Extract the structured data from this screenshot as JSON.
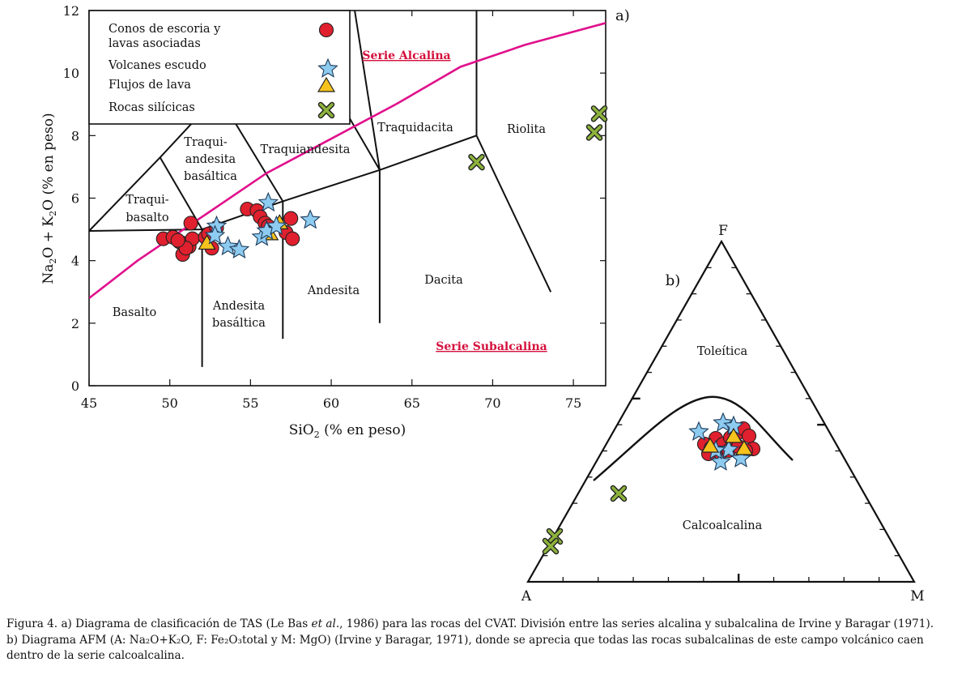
{
  "colors": {
    "cono": "#e0202e",
    "escudo": "#8ecbf0",
    "flujo": "#f6c21c",
    "silicica": "#8db33c",
    "divider": "#e0108c",
    "series_label": "#d4103c"
  },
  "chart_data": [
    {
      "type": "scatter",
      "panel_label": "a)",
      "title": "Diagrama de clasificación TAS",
      "xlabel": "SiO2 (% en peso)",
      "ylabel": "Na2O + K2O (% en peso)",
      "xlim": [
        45,
        77
      ],
      "ylim": [
        0,
        12
      ],
      "x_ticks": [
        45,
        50,
        55,
        60,
        65,
        70,
        75
      ],
      "y_ticks": [
        0,
        2,
        4,
        6,
        8,
        10,
        12
      ],
      "legend": [
        {
          "key": "cono",
          "label": "Conos de escoria  y lavas asociadas",
          "marker": "circle"
        },
        {
          "key": "escudo",
          "label": "Volcanes escudo",
          "marker": "star"
        },
        {
          "key": "flujo",
          "label": "Flujos de lava",
          "marker": "triangle"
        },
        {
          "key": "silicica",
          "label": "Rocas silícicas",
          "marker": "x"
        }
      ],
      "fields": [
        "Traqui-",
        "basalto",
        "Traqui-",
        "andesita",
        "basáltica",
        "Traquiandesita",
        "Traquidacita",
        "Riolita",
        "Basalto",
        "Andesita",
        "basáltica",
        "Andesita",
        "Dacita"
      ],
      "series_labels": {
        "alkaline": "Serie Alcalina",
        "subalkaline": "Serie Subalcalina"
      },
      "series": [
        {
          "key": "cono",
          "name": "Conos de escoria y lavas asociadas",
          "points": [
            [
              49.6,
              4.7
            ],
            [
              50.2,
              4.75
            ],
            [
              50.6,
              4.6
            ],
            [
              50.9,
              4.55
            ],
            [
              50.8,
              4.2
            ],
            [
              51.2,
              4.45
            ],
            [
              51.4,
              4.7
            ],
            [
              51.0,
              4.4
            ],
            [
              51.3,
              5.2
            ],
            [
              52.2,
              4.75
            ],
            [
              52.4,
              4.85
            ],
            [
              52.6,
              4.4
            ],
            [
              52.9,
              5.05
            ],
            [
              54.8,
              5.65
            ],
            [
              55.4,
              5.6
            ],
            [
              55.6,
              5.4
            ],
            [
              55.9,
              5.2
            ],
            [
              57.2,
              4.9
            ],
            [
              57.6,
              4.7
            ],
            [
              57.5,
              5.35
            ],
            [
              56.1,
              5.1
            ],
            [
              50.5,
              4.65
            ]
          ]
        },
        {
          "key": "escudo",
          "name": "Volcanes escudo",
          "points": [
            [
              52.9,
              5.1
            ],
            [
              53.6,
              4.45
            ],
            [
              54.3,
              4.35
            ],
            [
              55.7,
              4.75
            ],
            [
              56.0,
              4.95
            ],
            [
              56.1,
              5.85
            ],
            [
              58.7,
              5.3
            ],
            [
              52.8,
              4.8
            ],
            [
              56.6,
              5.1
            ]
          ]
        },
        {
          "key": "flujo",
          "name": "Flujos de lava",
          "points": [
            [
              52.3,
              4.55
            ],
            [
              56.2,
              4.85
            ],
            [
              56.8,
              5.2
            ]
          ]
        },
        {
          "key": "silicica",
          "name": "Rocas silícicas",
          "points": [
            [
              69.0,
              7.15
            ],
            [
              76.3,
              8.1
            ],
            [
              76.6,
              8.7
            ]
          ]
        }
      ]
    },
    {
      "type": "ternary",
      "panel_label": "b)",
      "title": "Diagrama AFM",
      "vertices": {
        "top": "F",
        "left": "A",
        "right": "M"
      },
      "fields": [
        "Toleítica",
        "Calcoalcalina"
      ],
      "series": [
        {
          "key": "cono",
          "name": "Conos de escoria y lavas asociadas",
          "n": 14
        },
        {
          "key": "escudo",
          "name": "Volcanes escudo",
          "n": 7
        },
        {
          "key": "flujo",
          "name": "Flujos de lava",
          "n": 3
        },
        {
          "key": "silicica",
          "name": "Rocas silícicas",
          "n": 3
        }
      ]
    }
  ],
  "caption": {
    "a_prefix": "Figura 4. a) Diagrama de clasificación de TAS (Le Bas ",
    "a_italic": "et al.",
    "a_suffix": ", 1986) para las rocas del CVAT. División entre las series alcalina y subalcalina de Irvine y Baragar (1971).",
    "b_text": "b) Diagrama AFM (A: Na₂O+K₂O, F: Fe₂O₃total y M: MgO) (Irvine y Baragar, 1971), donde se aprecia que todas las rocas subalcalinas de este campo volcánico caen dentro de la serie calcoalcalina."
  }
}
